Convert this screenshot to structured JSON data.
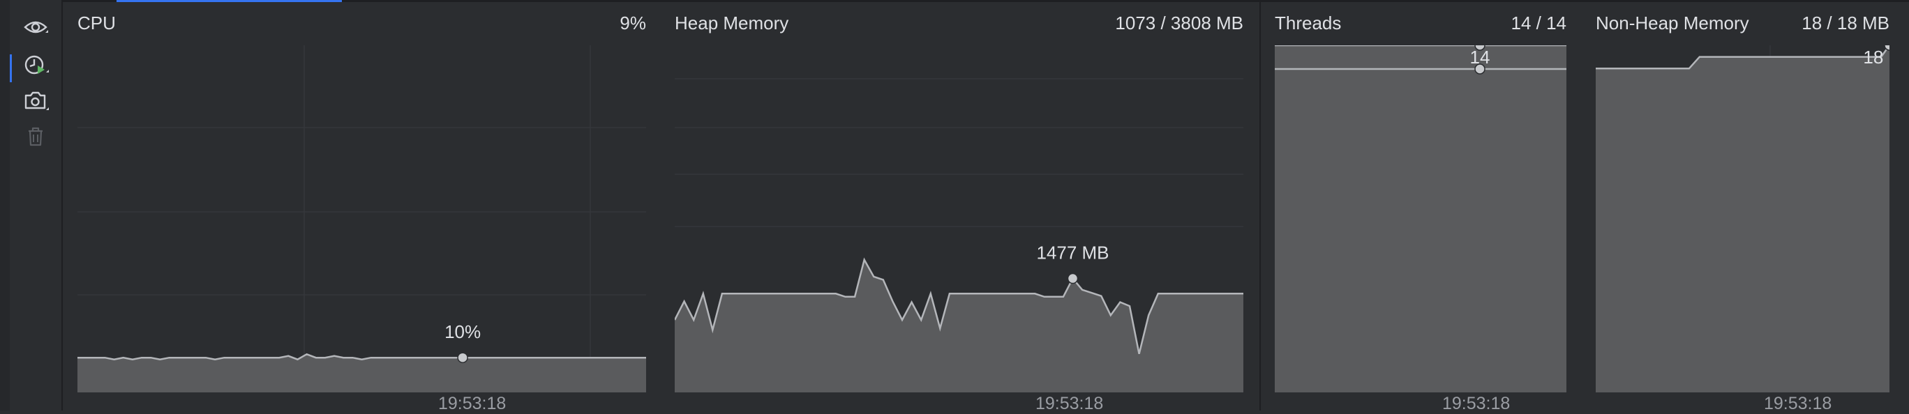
{
  "toolbar": {
    "buttons": [
      {
        "name": "visibility",
        "icon": "eye-icon",
        "enabled": true
      },
      {
        "name": "monitor",
        "icon": "clock-play-icon",
        "enabled": true
      },
      {
        "name": "snapshot",
        "icon": "camera-icon",
        "enabled": true
      },
      {
        "name": "delete",
        "icon": "trash-icon",
        "enabled": false
      }
    ]
  },
  "panels": {
    "cpu": {
      "title": "CPU",
      "value": "9%",
      "marker_label": "10%",
      "time": "19:53:18"
    },
    "heap": {
      "title": "Heap Memory",
      "value": "1073 / 3808 MB",
      "marker_label": "1477 MB",
      "time": "19:53:18"
    },
    "threads": {
      "title": "Threads",
      "value": "14 / 14",
      "marker_label": "14",
      "time": "19:53:18"
    },
    "nonheap": {
      "title": "Non-Heap Memory",
      "value": "18 / 18 MB",
      "marker_label": "18 MB",
      "time": "19:53:18"
    }
  },
  "colors": {
    "background": "#2b2d30",
    "area_fill": "#5a5b5d",
    "line": "#b4b6ba",
    "marker": "#c8cacd",
    "accent": "#3574f0"
  },
  "chart_data": [
    {
      "type": "area",
      "title": "CPU",
      "unit": "%",
      "ylim": [
        0,
        100
      ],
      "marker_index": 42,
      "values": [
        10,
        10,
        10,
        10,
        9.5,
        10,
        9.5,
        10,
        10,
        9.5,
        10,
        10,
        10,
        10,
        10,
        9.5,
        10,
        10,
        10,
        10,
        10,
        10,
        10,
        10.5,
        9.5,
        11,
        10,
        10,
        10.5,
        10,
        10,
        9.5,
        10,
        10,
        10,
        10,
        10,
        10,
        10,
        10,
        10,
        10,
        10,
        10,
        10,
        10,
        10,
        10,
        10,
        10,
        10,
        10,
        10,
        10,
        10,
        10,
        10,
        10,
        10,
        10,
        10,
        10,
        10
      ],
      "cursor_time": "19:53:18"
    },
    {
      "type": "area",
      "title": "Heap Memory",
      "unit": "MB",
      "ylim": [
        0,
        4500
      ],
      "marker_index": 42,
      "values": [
        940,
        1180,
        940,
        1280,
        810,
        1280,
        1280,
        1280,
        1280,
        1280,
        1280,
        1280,
        1280,
        1280,
        1280,
        1280,
        1280,
        1280,
        1240,
        1240,
        1720,
        1500,
        1460,
        1180,
        940,
        1170,
        940,
        1280,
        830,
        1280,
        1280,
        1280,
        1280,
        1280,
        1280,
        1280,
        1280,
        1280,
        1280,
        1240,
        1240,
        1240,
        1477,
        1330,
        1290,
        1250,
        1000,
        1170,
        1120,
        500,
        1000,
        1280,
        1280,
        1280,
        1280,
        1280,
        1280,
        1280,
        1280,
        1280,
        1280
      ],
      "cursor_time": "19:53:18"
    },
    {
      "type": "area",
      "title": "Threads",
      "unit": "",
      "ylim": [
        0,
        14
      ],
      "marker_index": 1,
      "values": [
        14,
        14
      ],
      "cursor_time": "19:53:18"
    },
    {
      "type": "area",
      "title": "Non-Heap Memory",
      "unit": "MB",
      "ylim": [
        0,
        18
      ],
      "marker_index": 4,
      "values": [
        16.8,
        16.8,
        17.4,
        17.4,
        18
      ],
      "cursor_time": "19:53:18"
    }
  ]
}
